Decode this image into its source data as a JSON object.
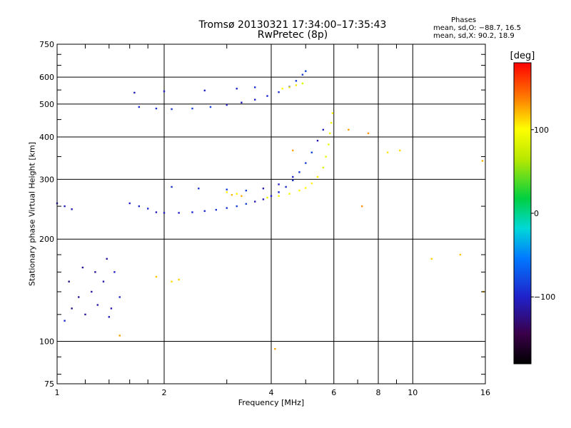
{
  "header": {
    "title_line1": "Tromsø 20130321 17:34:00–17:35:43",
    "title_line2": "RwPretec (8p)",
    "stats_heading": "Phases",
    "stats_o": "mean, sd,O: −88.7, 16.5",
    "stats_x": "mean, sd,X:  90.2, 18.9"
  },
  "colorbar": {
    "unit": "[deg]",
    "range": [
      -180,
      180
    ],
    "ticks": [
      100,
      0,
      -100
    ],
    "tick_labels": [
      "100",
      "0",
      "−100"
    ]
  },
  "chart_data": {
    "type": "scatter",
    "title": "Tromsø 20130321 17:34:00–17:35:43",
    "subtitle": "RwPretec (8p)",
    "xlabel": "Frequency [MHz]",
    "ylabel": "Stationary phase Virtual Height [km]",
    "x_scale": "log",
    "y_scale": "log",
    "xlim": [
      1,
      16
    ],
    "ylim": [
      75,
      750
    ],
    "grid": true,
    "x_major_ticks": [
      1,
      2,
      4,
      6,
      8,
      10,
      16
    ],
    "x_major_labels": [
      "1",
      "2",
      "4",
      "6",
      "8",
      "10",
      "16"
    ],
    "x_minor_ticks": [
      1.2,
      1.4,
      1.6,
      1.8,
      3,
      5,
      7,
      9
    ],
    "y_major_ticks": [
      75,
      100,
      200,
      300,
      400,
      500,
      600,
      750
    ],
    "y_major_labels": [
      "75",
      "100",
      "200",
      "300",
      "400",
      "500",
      "600",
      "750"
    ],
    "y_minor_ticks": [
      80,
      90,
      120,
      140,
      160,
      180,
      250,
      350,
      450,
      550,
      650,
      700
    ],
    "color_encoding": "phase_deg",
    "series": [
      {
        "role": "o_mode_F2_trace",
        "phase_mean_deg": -95,
        "points": [
          [
            1.9,
            240
          ],
          [
            2.0,
            239
          ],
          [
            2.2,
            239
          ],
          [
            2.4,
            240
          ],
          [
            2.6,
            242
          ],
          [
            2.8,
            244
          ],
          [
            3.0,
            247
          ],
          [
            3.2,
            250
          ],
          [
            3.4,
            254
          ],
          [
            3.6,
            258
          ],
          [
            3.8,
            262
          ],
          [
            4.0,
            268
          ],
          [
            4.2,
            275
          ],
          [
            4.4,
            285
          ],
          [
            4.6,
            298
          ],
          [
            4.8,
            315
          ],
          [
            5.0,
            335
          ],
          [
            5.2,
            360
          ],
          [
            5.4,
            390
          ],
          [
            5.6,
            420
          ],
          [
            1.6,
            255
          ],
          [
            1.7,
            250
          ],
          [
            1.8,
            246
          ],
          [
            2.1,
            285
          ],
          [
            2.5,
            282
          ],
          [
            3.0,
            280
          ],
          [
            3.4,
            278
          ],
          [
            3.8,
            282
          ],
          [
            4.2,
            290
          ],
          [
            4.6,
            305
          ]
        ]
      },
      {
        "role": "x_mode_F2_trace",
        "phase_mean_deg": 95,
        "points": [
          [
            3.9,
            265
          ],
          [
            4.2,
            268
          ],
          [
            4.5,
            272
          ],
          [
            4.8,
            278
          ],
          [
            5.0,
            283
          ],
          [
            5.2,
            292
          ],
          [
            5.4,
            305
          ],
          [
            5.6,
            325
          ],
          [
            5.7,
            350
          ],
          [
            5.8,
            380
          ],
          [
            5.85,
            410
          ],
          [
            5.9,
            440
          ],
          [
            5.95,
            470
          ],
          [
            3.0,
            275
          ],
          [
            3.2,
            272
          ]
        ]
      },
      {
        "role": "second_hop_trace",
        "phase_mean_deg": -95,
        "points": [
          [
            1.7,
            490
          ],
          [
            1.9,
            485
          ],
          [
            2.1,
            483
          ],
          [
            2.4,
            485
          ],
          [
            2.7,
            490
          ],
          [
            3.0,
            497
          ],
          [
            3.3,
            505
          ],
          [
            3.6,
            515
          ],
          [
            3.9,
            528
          ],
          [
            4.2,
            542
          ],
          [
            4.5,
            562
          ],
          [
            4.7,
            585
          ],
          [
            4.9,
            610
          ],
          [
            5.0,
            625
          ],
          [
            1.65,
            540
          ],
          [
            2.0,
            545
          ],
          [
            2.6,
            548
          ],
          [
            3.2,
            555
          ],
          [
            3.6,
            560
          ]
        ]
      },
      {
        "role": "second_hop_x_trace",
        "phase_mean_deg": 95,
        "points": [
          [
            4.3,
            555
          ],
          [
            4.5,
            560
          ],
          [
            4.7,
            568
          ],
          [
            4.9,
            575
          ]
        ]
      },
      {
        "role": "low_frequency_echoes",
        "phase_mean_deg": -110,
        "points": [
          [
            1.05,
            115
          ],
          [
            1.1,
            125
          ],
          [
            1.15,
            135
          ],
          [
            1.2,
            120
          ],
          [
            1.25,
            140
          ],
          [
            1.3,
            128
          ],
          [
            1.35,
            150
          ],
          [
            1.4,
            118
          ],
          [
            1.45,
            160
          ],
          [
            1.5,
            135
          ],
          [
            1.08,
            150
          ],
          [
            1.18,
            165
          ],
          [
            1.28,
            160
          ],
          [
            1.38,
            175
          ],
          [
            1.42,
            125
          ],
          [
            1.05,
            250
          ],
          [
            1.1,
            245
          ],
          [
            1.0,
            255
          ]
        ]
      },
      {
        "role": "scattered_points",
        "phase_mean_deg": 120,
        "points": [
          [
            2.1,
            150
          ],
          [
            2.2,
            152
          ],
          [
            1.9,
            155
          ],
          [
            3.1,
            270
          ],
          [
            3.3,
            268
          ],
          [
            4.6,
            365
          ],
          [
            6.6,
            420
          ],
          [
            7.5,
            410
          ],
          [
            8.5,
            360
          ],
          [
            9.2,
            365
          ],
          [
            11.3,
            175
          ],
          [
            13.6,
            180
          ],
          [
            15.8,
            140
          ],
          [
            15.7,
            340
          ],
          [
            4.1,
            95
          ],
          [
            1.5,
            104
          ],
          [
            7.2,
            250
          ]
        ]
      }
    ]
  }
}
